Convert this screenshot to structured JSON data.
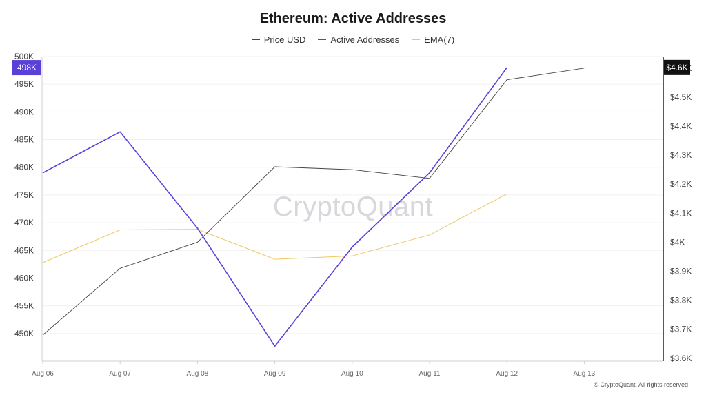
{
  "chart_data": {
    "type": "line",
    "title": "Ethereum: Active Addresses",
    "categories": [
      "Aug 06",
      "Aug 07",
      "Aug 08",
      "Aug 09",
      "Aug 10",
      "Aug 11",
      "Aug 12",
      "Aug 13"
    ],
    "series": [
      {
        "name": "Price USD",
        "axis": "right",
        "color": "#444444",
        "values": [
          3680,
          3910,
          4000,
          4260,
          4250,
          4220,
          4560,
          4600
        ]
      },
      {
        "name": "Active Addresses",
        "axis": "left",
        "color": "#5b3fd9",
        "values": [
          479000,
          486400,
          469000,
          447700,
          465600,
          479000,
          498000,
          null
        ]
      },
      {
        "name": "EMA(7)",
        "axis": "left",
        "color": "#f0c75e",
        "values": [
          462800,
          468700,
          468800,
          463400,
          464000,
          467800,
          475200,
          null
        ]
      }
    ],
    "y_left": {
      "range": [
        445000,
        500000
      ],
      "ticks": [
        450000,
        455000,
        460000,
        465000,
        470000,
        475000,
        480000,
        485000,
        490000,
        495000,
        500000
      ],
      "tick_labels": [
        "450K",
        "455K",
        "460K",
        "465K",
        "470K",
        "475K",
        "480K",
        "485K",
        "490K",
        "495K",
        "500K"
      ]
    },
    "y_right": {
      "range": [
        3590,
        4640
      ],
      "ticks": [
        3600,
        3700,
        3800,
        3900,
        4000,
        4100,
        4200,
        4300,
        4400,
        4500,
        4600
      ],
      "tick_labels": [
        "$3.6K",
        "$3.7K",
        "$3.8K",
        "$3.9K",
        "$4K",
        "$4.1K",
        "$4.2K",
        "$4.3K",
        "$4.4K",
        "$4.5K",
        "$4.6K"
      ]
    },
    "last_value_badges": {
      "left": "498K",
      "right": "$4.6K"
    },
    "xlabel": "",
    "ylabel": "",
    "grid": true
  },
  "watermark": "CryptoQuant",
  "copyright": "© CryptoQuant. All rights reserved",
  "colors": {
    "accent": "#5b3fd9",
    "price": "#444444",
    "ema": "#f0c75e",
    "grid": "#f0f0f0"
  }
}
